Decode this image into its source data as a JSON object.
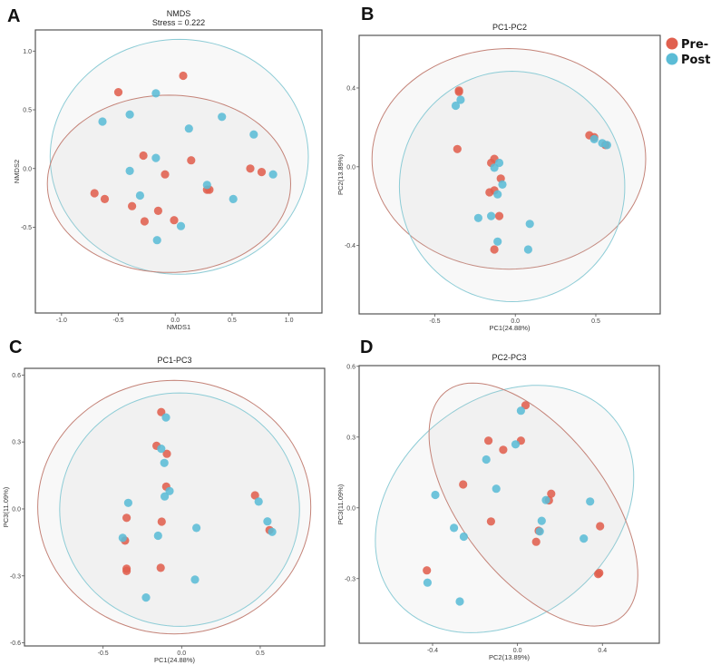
{
  "colors": {
    "pre": "#E0604F",
    "post": "#5BBCD6",
    "pre_ellipse": "#C48378",
    "post_ellipse": "#8DCCD6"
  },
  "legend": [
    {
      "key": "pre",
      "label": "Pre-"
    },
    {
      "key": "post",
      "label": "Post-"
    }
  ],
  "chart_data": [
    {
      "panel": "A",
      "type": "scatter",
      "title": "NMDS",
      "subtitle": "Stress = 0.222",
      "xlabel": "NMDS1",
      "ylabel": "NMDS2",
      "xlim": [
        -1.23,
        1.29
      ],
      "ylim": [
        -1.23,
        1.18
      ],
      "xticks": [
        -1.0,
        -0.5,
        0.0,
        0.5,
        1.0
      ],
      "yticks": [
        1.0,
        0.5,
        0.0,
        -0.5
      ],
      "series": [
        {
          "name": "Pre-",
          "key": "pre",
          "points": [
            [
              0.07,
              0.79
            ],
            [
              -0.5,
              0.65
            ],
            [
              -0.28,
              0.11
            ],
            [
              0.14,
              0.07
            ],
            [
              -0.09,
              -0.05
            ],
            [
              0.66,
              0.0
            ],
            [
              0.76,
              -0.03
            ],
            [
              -0.71,
              -0.21
            ],
            [
              -0.62,
              -0.26
            ],
            [
              -0.38,
              -0.32
            ],
            [
              -0.15,
              -0.36
            ],
            [
              -0.27,
              -0.45
            ],
            [
              -0.01,
              -0.44
            ],
            [
              0.28,
              -0.18
            ],
            [
              0.3,
              -0.18
            ]
          ]
        },
        {
          "name": "Post-",
          "key": "post",
          "points": [
            [
              -0.17,
              0.64
            ],
            [
              -0.64,
              0.4
            ],
            [
              -0.4,
              0.46
            ],
            [
              0.12,
              0.34
            ],
            [
              0.41,
              0.44
            ],
            [
              0.69,
              0.29
            ],
            [
              -0.17,
              0.09
            ],
            [
              -0.4,
              -0.02
            ],
            [
              0.86,
              -0.05
            ],
            [
              0.28,
              -0.14
            ],
            [
              -0.31,
              -0.23
            ],
            [
              0.51,
              -0.26
            ],
            [
              0.05,
              -0.49
            ],
            [
              -0.16,
              -0.61
            ]
          ]
        }
      ],
      "ellipses": [
        {
          "key": "post",
          "center": [
            0.035,
            0.1
          ],
          "u": [
            1.135,
            0
          ],
          "v": [
            0,
            1.0
          ]
        },
        {
          "key": "pre",
          "center": [
            -0.055,
            -0.13
          ],
          "u": [
            1.07,
            0
          ],
          "v": [
            0,
            0.755
          ]
        }
      ]
    },
    {
      "panel": "B",
      "type": "scatter",
      "title": "PC1-PC2",
      "subtitle": "",
      "xlabel": "PC1(24.88%)",
      "ylabel": "PC2(13.89%)",
      "xlim": [
        -0.97,
        0.9
      ],
      "ylim": [
        -0.747,
        0.667
      ],
      "xticks": [
        -0.5,
        0.0,
        0.5
      ],
      "yticks": [
        0.4,
        0.0,
        -0.4
      ],
      "series": [
        {
          "name": "Pre-",
          "key": "pre",
          "points": [
            [
              -0.35,
              0.387
            ],
            [
              -0.35,
              0.38
            ],
            [
              -0.36,
              0.09
            ],
            [
              -0.13,
              0.04
            ],
            [
              -0.15,
              0.02
            ],
            [
              -0.09,
              -0.06
            ],
            [
              -0.13,
              -0.12
            ],
            [
              -0.16,
              -0.13
            ],
            [
              -0.1,
              -0.25
            ],
            [
              -0.13,
              -0.42
            ],
            [
              0.46,
              0.16
            ],
            [
              0.49,
              0.15
            ],
            [
              0.56,
              0.11
            ]
          ]
        },
        {
          "name": "Post-",
          "key": "post",
          "points": [
            [
              -0.34,
              0.34
            ],
            [
              -0.37,
              0.31
            ],
            [
              -0.1,
              0.02
            ],
            [
              -0.13,
              -0.005
            ],
            [
              -0.08,
              -0.09
            ],
            [
              -0.11,
              -0.14
            ],
            [
              -0.23,
              -0.26
            ],
            [
              -0.15,
              -0.25
            ],
            [
              0.09,
              -0.29
            ],
            [
              -0.11,
              -0.38
            ],
            [
              0.08,
              -0.42
            ],
            [
              0.49,
              0.14
            ],
            [
              0.54,
              0.12
            ],
            [
              0.57,
              0.11
            ]
          ]
        }
      ],
      "ellipses": [
        {
          "key": "pre",
          "center": [
            -0.04,
            0.04
          ],
          "u": [
            0.85,
            0
          ],
          "v": [
            0,
            0.56
          ]
        },
        {
          "key": "post",
          "center": [
            -0.02,
            -0.1
          ],
          "u": [
            0.7,
            0
          ],
          "v": [
            0,
            0.585
          ]
        }
      ]
    },
    {
      "panel": "C",
      "type": "scatter",
      "title": "PC1-PC3",
      "subtitle": "",
      "xlabel": "PC1(24.88%)",
      "ylabel": "PC3(11.09%)",
      "xlim": [
        -1.0,
        0.91
      ],
      "ylim": [
        -0.614,
        0.63
      ],
      "xticks": [
        -0.5,
        0.0,
        0.5
      ],
      "yticks": [
        0.6,
        0.3,
        0.0,
        -0.3,
        -0.6
      ],
      "series": [
        {
          "name": "Pre-",
          "key": "pre",
          "points": [
            [
              -0.13,
              0.434
            ],
            [
              -0.16,
              0.283
            ],
            [
              -0.094,
              0.247
            ],
            [
              -0.098,
              0.1
            ],
            [
              -0.127,
              -0.057
            ],
            [
              -0.35,
              -0.04
            ],
            [
              -0.36,
              -0.142
            ],
            [
              -0.35,
              -0.268
            ],
            [
              -0.35,
              -0.278
            ],
            [
              -0.133,
              -0.264
            ],
            [
              0.467,
              0.061
            ],
            [
              0.559,
              -0.095
            ]
          ]
        },
        {
          "name": "Post-",
          "key": "post",
          "points": [
            [
              -0.1,
              0.41
            ],
            [
              -0.13,
              0.27
            ],
            [
              -0.11,
              0.206
            ],
            [
              -0.077,
              0.08
            ],
            [
              -0.108,
              0.056
            ],
            [
              -0.34,
              0.027
            ],
            [
              -0.375,
              -0.13
            ],
            [
              -0.15,
              -0.12
            ],
            [
              0.094,
              -0.085
            ],
            [
              0.085,
              -0.317
            ],
            [
              -0.227,
              -0.397
            ],
            [
              0.49,
              0.033
            ],
            [
              0.546,
              -0.056
            ],
            [
              0.576,
              -0.103
            ]
          ]
        }
      ],
      "ellipses": [
        {
          "key": "pre",
          "center": [
            -0.047,
            0.008
          ],
          "u": [
            0.869,
            0
          ],
          "v": [
            0,
            0.568
          ]
        },
        {
          "key": "post",
          "center": [
            -0.013,
            -0.003
          ],
          "u": [
            0.763,
            0
          ],
          "v": [
            0,
            0.523
          ]
        }
      ]
    },
    {
      "panel": "D",
      "type": "scatter",
      "title": "PC2-PC3",
      "subtitle": "",
      "xlabel": "PC2(13.89%)",
      "ylabel": "PC3(11.09%)",
      "xlim": [
        -0.746,
        0.668
      ],
      "ylim": [
        -0.574,
        0.603
      ],
      "xticks": [
        -0.4,
        0.0,
        0.4
      ],
      "yticks": [
        0.6,
        0.3,
        0.0,
        -0.3
      ],
      "series": [
        {
          "name": "Pre-",
          "key": "pre",
          "points": [
            [
              0.038,
              0.435
            ],
            [
              0.016,
              0.285
            ],
            [
              -0.137,
              0.285
            ],
            [
              -0.067,
              0.246
            ],
            [
              -0.256,
              0.099
            ],
            [
              0.159,
              0.06
            ],
            [
              0.148,
              0.032
            ],
            [
              -0.125,
              -0.058
            ],
            [
              0.1,
              -0.097
            ],
            [
              0.088,
              -0.144
            ],
            [
              0.389,
              -0.078
            ],
            [
              -0.427,
              -0.265
            ],
            [
              0.385,
              -0.276
            ],
            [
              0.38,
              -0.281
            ]
          ]
        },
        {
          "name": "Post-",
          "key": "post",
          "points": [
            [
              0.016,
              0.412
            ],
            [
              -0.009,
              0.269
            ],
            [
              -0.147,
              0.205
            ],
            [
              -0.1,
              0.081
            ],
            [
              -0.387,
              0.055
            ],
            [
              0.134,
              0.033
            ],
            [
              0.342,
              0.027
            ],
            [
              0.114,
              -0.055
            ],
            [
              -0.299,
              -0.085
            ],
            [
              -0.253,
              -0.122
            ],
            [
              0.105,
              -0.1
            ],
            [
              0.312,
              -0.13
            ],
            [
              -0.424,
              -0.317
            ],
            [
              -0.272,
              -0.397
            ]
          ]
        }
      ],
      "ellipses": [
        {
          "key": "post",
          "center": [
            -0.061,
            -0.005
          ],
          "u": [
            0.512,
            0.387
          ],
          "v": [
            0.329,
            -0.354
          ]
        },
        {
          "key": "pre",
          "center": [
            0.075,
            0.014
          ],
          "u": [
            -0.411,
            0.48
          ],
          "v": [
            0.27,
            0.187
          ]
        }
      ]
    }
  ]
}
